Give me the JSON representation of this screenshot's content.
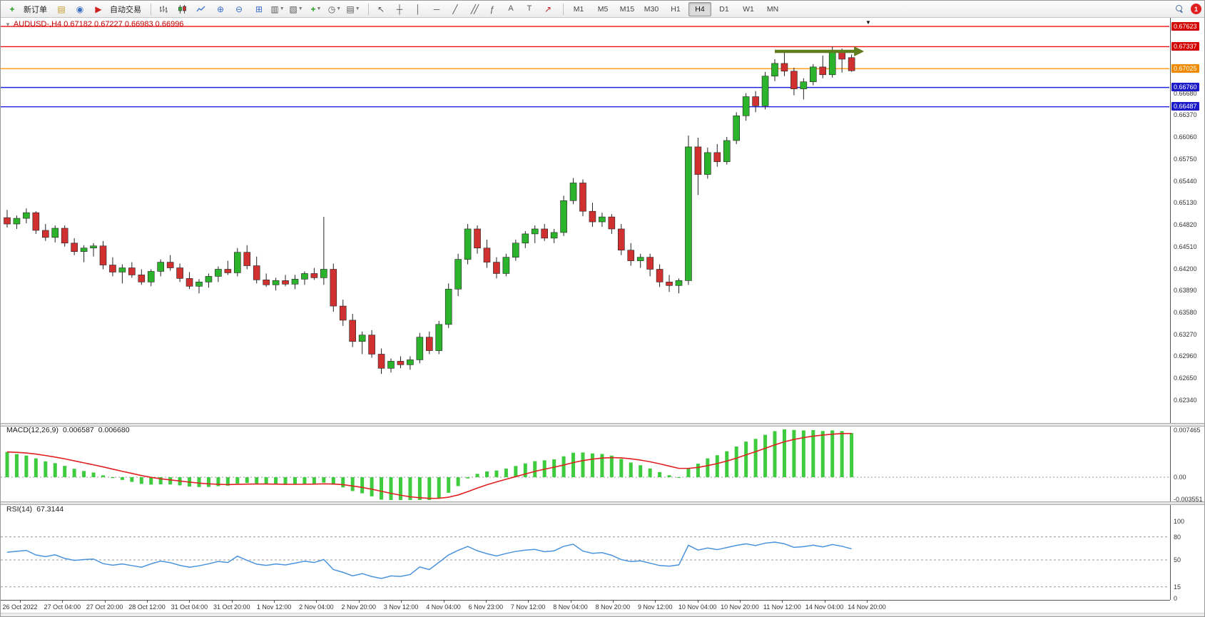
{
  "toolbar": {
    "new_order_label": "新订单",
    "autotrading_label": "自动交易",
    "timeframes": [
      "M1",
      "M5",
      "M15",
      "M30",
      "H1",
      "H4",
      "D1",
      "W1",
      "MN"
    ],
    "active_timeframe": "H4",
    "badge_count": "1"
  },
  "chart": {
    "title": "AUDUSD-,H4  0.67182 0.67227 0.66983 0.66996",
    "symbol": "AUDUSD-",
    "period": "H4",
    "ohlc_header": {
      "open": "0.67182",
      "high": "0.67227",
      "low": "0.66983",
      "close": "0.66996"
    }
  },
  "chart_data": {
    "type": "candlestick",
    "symbol": "AUDUSD",
    "timeframe": "H4",
    "colors": {
      "up": "#2cb32c",
      "down": "#d03030",
      "wick": "#222222",
      "macd_hist": "#3ecc3e",
      "macd_signal": "#e02020",
      "rsi_line": "#4a93dd"
    },
    "levels": [
      {
        "price": 0.67623,
        "label": "0.67623",
        "color": "#ee1111",
        "chip_bg": "#d40000",
        "type": "resistance-line"
      },
      {
        "price": 0.67337,
        "label": "0.67337",
        "color": "#ee1111",
        "chip_bg": "#d40000",
        "type": "resistance-line"
      },
      {
        "price": 0.67025,
        "label": "0.67025",
        "color": "#ff9800",
        "chip_bg": "#ef8a00",
        "type": "current-bid-line"
      },
      {
        "price": 0.6676,
        "label": "0.66760",
        "color": "#2222dd",
        "chip_bg": "#1a1ac8",
        "type": "support-line"
      },
      {
        "price": 0.66487,
        "label": "0.66487",
        "color": "#2222dd",
        "chip_bg": "#1a1ac8",
        "type": "support-line"
      }
    ],
    "price_grid_labels": [
      "0.66680",
      "0.66370",
      "0.66060",
      "0.65750",
      "0.65440",
      "0.65130",
      "0.64820",
      "0.64510",
      "0.64200",
      "0.63890",
      "0.63580",
      "0.63270",
      "0.62960",
      "0.62650",
      "0.62340"
    ],
    "time_labels": [
      "26 Oct 2022",
      "27 Oct 04:00",
      "27 Oct 20:00",
      "28 Oct 12:00",
      "31 Oct 04:00",
      "31 Oct 20:00",
      "1 Nov 12:00",
      "2 Nov 04:00",
      "2 Nov 20:00",
      "3 Nov 12:00",
      "4 Nov 04:00",
      "6 Nov 23:00",
      "7 Nov 12:00",
      "8 Nov 04:00",
      "8 Nov 20:00",
      "9 Nov 12:00",
      "10 Nov 04:00",
      "10 Nov 20:00",
      "11 Nov 12:00",
      "14 Nov 04:00",
      "14 Nov 20:00"
    ],
    "trend_arrow": {
      "start_index": 80,
      "end_index": 89.3,
      "price": 0.6727,
      "color": "#5f7d1c"
    },
    "macd": {
      "label": "MACD(12,26,9)",
      "value_main": "0.006587",
      "value_signal": "0.006680",
      "params": [
        12,
        26,
        9
      ],
      "scale_labels": [
        {
          "text": "0.007465",
          "value": 0.007465
        },
        {
          "text": "0.00",
          "value": 0
        },
        {
          "text": "-0.003551",
          "value": -0.003551
        }
      ]
    },
    "rsi": {
      "label": "RSI(14)",
      "value": "67.3144",
      "period": 14,
      "scale_labels": [
        {
          "text": "100",
          "value": 100
        },
        {
          "text": "80",
          "value": 80
        },
        {
          "text": "50",
          "value": 50
        },
        {
          "text": "15",
          "value": 15
        },
        {
          "text": "0",
          "value": 0
        }
      ],
      "dashed_levels": [
        80,
        50,
        15
      ]
    },
    "candles": [
      [
        0.6492,
        0.6503,
        0.6478,
        0.6483
      ],
      [
        0.6483,
        0.6495,
        0.6476,
        0.6491
      ],
      [
        0.6491,
        0.6505,
        0.6484,
        0.6499
      ],
      [
        0.6499,
        0.6501,
        0.6469,
        0.6474
      ],
      [
        0.6474,
        0.6483,
        0.6459,
        0.6464
      ],
      [
        0.6464,
        0.6481,
        0.6457,
        0.6477
      ],
      [
        0.6477,
        0.6481,
        0.6451,
        0.6456
      ],
      [
        0.6456,
        0.6463,
        0.6439,
        0.6444
      ],
      [
        0.6444,
        0.6453,
        0.6429,
        0.6449
      ],
      [
        0.6449,
        0.6456,
        0.6437,
        0.6452
      ],
      [
        0.6452,
        0.6459,
        0.6419,
        0.6425
      ],
      [
        0.6425,
        0.6436,
        0.6409,
        0.6415
      ],
      [
        0.6415,
        0.6426,
        0.6399,
        0.6421
      ],
      [
        0.6421,
        0.6429,
        0.6407,
        0.6411
      ],
      [
        0.6411,
        0.6419,
        0.6397,
        0.6401
      ],
      [
        0.6401,
        0.6419,
        0.6395,
        0.6416
      ],
      [
        0.6416,
        0.6433,
        0.6409,
        0.6429
      ],
      [
        0.6429,
        0.6439,
        0.6417,
        0.6421
      ],
      [
        0.6421,
        0.6427,
        0.6401,
        0.6406
      ],
      [
        0.6406,
        0.6415,
        0.6391,
        0.6395
      ],
      [
        0.6395,
        0.6405,
        0.6385,
        0.6401
      ],
      [
        0.6401,
        0.6413,
        0.6393,
        0.6409
      ],
      [
        0.6409,
        0.6423,
        0.6401,
        0.6419
      ],
      [
        0.6419,
        0.6431,
        0.6411,
        0.6414
      ],
      [
        0.6414,
        0.6449,
        0.6409,
        0.6443
      ],
      [
        0.6443,
        0.6453,
        0.6419,
        0.6424
      ],
      [
        0.6424,
        0.6437,
        0.6399,
        0.6404
      ],
      [
        0.6404,
        0.6413,
        0.6394,
        0.6397
      ],
      [
        0.6397,
        0.6407,
        0.6389,
        0.6403
      ],
      [
        0.6403,
        0.6411,
        0.6395,
        0.6398
      ],
      [
        0.6398,
        0.6411,
        0.6391,
        0.6405
      ],
      [
        0.6405,
        0.6416,
        0.6397,
        0.6413
      ],
      [
        0.6413,
        0.6421,
        0.6404,
        0.6407
      ],
      [
        0.6407,
        0.6493,
        0.6397,
        0.6419
      ],
      [
        0.6419,
        0.6427,
        0.6359,
        0.6367
      ],
      [
        0.6367,
        0.6376,
        0.6339,
        0.6347
      ],
      [
        0.6347,
        0.6356,
        0.6309,
        0.6317
      ],
      [
        0.6317,
        0.6331,
        0.6299,
        0.6326
      ],
      [
        0.6326,
        0.6333,
        0.6294,
        0.6299
      ],
      [
        0.6299,
        0.6307,
        0.6271,
        0.6279
      ],
      [
        0.6279,
        0.6293,
        0.6273,
        0.6289
      ],
      [
        0.6289,
        0.6296,
        0.6279,
        0.6284
      ],
      [
        0.6284,
        0.6296,
        0.6277,
        0.6291
      ],
      [
        0.6291,
        0.6329,
        0.6286,
        0.6323
      ],
      [
        0.6323,
        0.6331,
        0.6299,
        0.6304
      ],
      [
        0.6304,
        0.6346,
        0.6299,
        0.6341
      ],
      [
        0.6341,
        0.6399,
        0.6336,
        0.6391
      ],
      [
        0.6391,
        0.6441,
        0.6381,
        0.6433
      ],
      [
        0.6433,
        0.6483,
        0.6426,
        0.6476
      ],
      [
        0.6476,
        0.6481,
        0.6441,
        0.6449
      ],
      [
        0.6449,
        0.6461,
        0.6421,
        0.6429
      ],
      [
        0.6429,
        0.6436,
        0.6406,
        0.6413
      ],
      [
        0.6413,
        0.6441,
        0.6409,
        0.6436
      ],
      [
        0.6436,
        0.6461,
        0.6431,
        0.6456
      ],
      [
        0.6456,
        0.6473,
        0.6449,
        0.6469
      ],
      [
        0.6469,
        0.6481,
        0.6456,
        0.6476
      ],
      [
        0.6476,
        0.6483,
        0.6459,
        0.6463
      ],
      [
        0.6463,
        0.6476,
        0.6456,
        0.6471
      ],
      [
        0.6471,
        0.6523,
        0.6466,
        0.6516
      ],
      [
        0.6516,
        0.6548,
        0.6511,
        0.6541
      ],
      [
        0.6541,
        0.6546,
        0.6494,
        0.6501
      ],
      [
        0.6501,
        0.6513,
        0.6479,
        0.6486
      ],
      [
        0.6486,
        0.6499,
        0.6479,
        0.6493
      ],
      [
        0.6493,
        0.6497,
        0.6469,
        0.6476
      ],
      [
        0.6476,
        0.6483,
        0.6439,
        0.6446
      ],
      [
        0.6446,
        0.6456,
        0.6424,
        0.6431
      ],
      [
        0.6431,
        0.6441,
        0.6421,
        0.6436
      ],
      [
        0.6436,
        0.6441,
        0.6409,
        0.6419
      ],
      [
        0.6419,
        0.6426,
        0.6394,
        0.6401
      ],
      [
        0.6401,
        0.6411,
        0.6387,
        0.6396
      ],
      [
        0.6396,
        0.6406,
        0.6385,
        0.6403
      ],
      [
        0.6403,
        0.6608,
        0.6397,
        0.6592
      ],
      [
        0.6592,
        0.6605,
        0.6524,
        0.6553
      ],
      [
        0.6553,
        0.6591,
        0.6547,
        0.6584
      ],
      [
        0.6584,
        0.6596,
        0.6564,
        0.6571
      ],
      [
        0.6571,
        0.6606,
        0.6567,
        0.6601
      ],
      [
        0.6601,
        0.6641,
        0.6596,
        0.6636
      ],
      [
        0.6636,
        0.6668,
        0.6629,
        0.6663
      ],
      [
        0.6663,
        0.6671,
        0.6641,
        0.665
      ],
      [
        0.665,
        0.6698,
        0.6645,
        0.6692
      ],
      [
        0.6692,
        0.6716,
        0.6685,
        0.671
      ],
      [
        0.671,
        0.6727,
        0.6692,
        0.6699
      ],
      [
        0.6699,
        0.6704,
        0.6665,
        0.6674
      ],
      [
        0.6674,
        0.6689,
        0.6659,
        0.6684
      ],
      [
        0.6684,
        0.6709,
        0.6679,
        0.6705
      ],
      [
        0.6705,
        0.6721,
        0.6689,
        0.6694
      ],
      [
        0.6694,
        0.6734,
        0.669,
        0.6727
      ],
      [
        0.6727,
        0.6731,
        0.6697,
        0.6716
      ],
      [
        0.67182,
        0.67227,
        0.66983,
        0.66996
      ]
    ]
  }
}
